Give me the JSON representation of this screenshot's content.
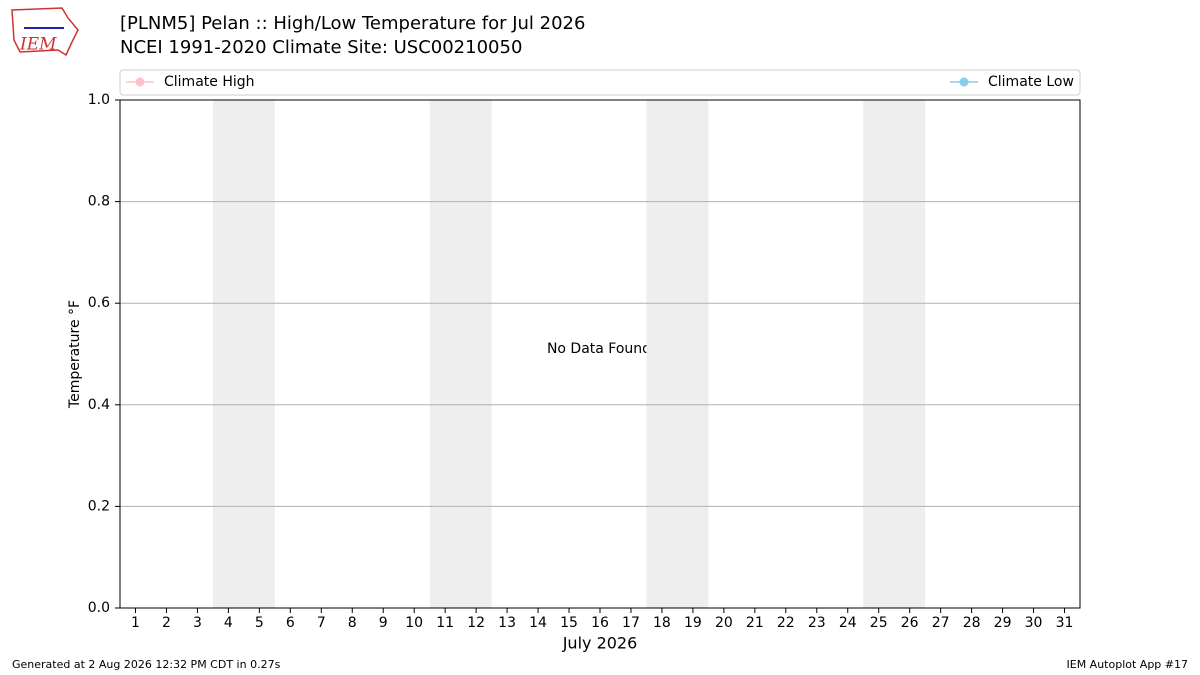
{
  "chart_data": {
    "type": "line",
    "title": "[PLNM5] Pelan :: High/Low Temperature for Jul 2026",
    "subtitle": "NCEI 1991-2020 Climate Site: USC00210050",
    "xlabel": "July 2026",
    "ylabel": "Temperature °F",
    "annotation": "No Data Found",
    "series": [
      {
        "name": "Climate High",
        "color": "#ffc0cb",
        "values": []
      },
      {
        "name": "Climate Low",
        "color": "#87ceeb",
        "values": []
      }
    ],
    "xlim": [
      0.5,
      31.5
    ],
    "xticks": [
      1,
      2,
      3,
      4,
      5,
      6,
      7,
      8,
      9,
      10,
      11,
      12,
      13,
      14,
      15,
      16,
      17,
      18,
      19,
      20,
      21,
      22,
      23,
      24,
      25,
      26,
      27,
      28,
      29,
      30,
      31
    ],
    "ylim": [
      0,
      1
    ],
    "yticks": [
      {
        "value": 0,
        "label": "0.0"
      },
      0.2,
      0.4,
      0.6,
      0.8,
      {
        "value": 1,
        "label": "1.0"
      }
    ],
    "grid": true,
    "shaded_spans": [
      [
        3.5,
        5.5
      ],
      [
        10.5,
        12.5
      ],
      [
        17.5,
        19.5
      ],
      [
        24.5,
        26.5
      ]
    ],
    "shade_color": "#eeeeee"
  },
  "logo": "IEM",
  "footer": {
    "left": "Generated at 2 Aug 2026 12:32 PM CDT in 0.27s",
    "right": "IEM Autoplot App #17"
  }
}
